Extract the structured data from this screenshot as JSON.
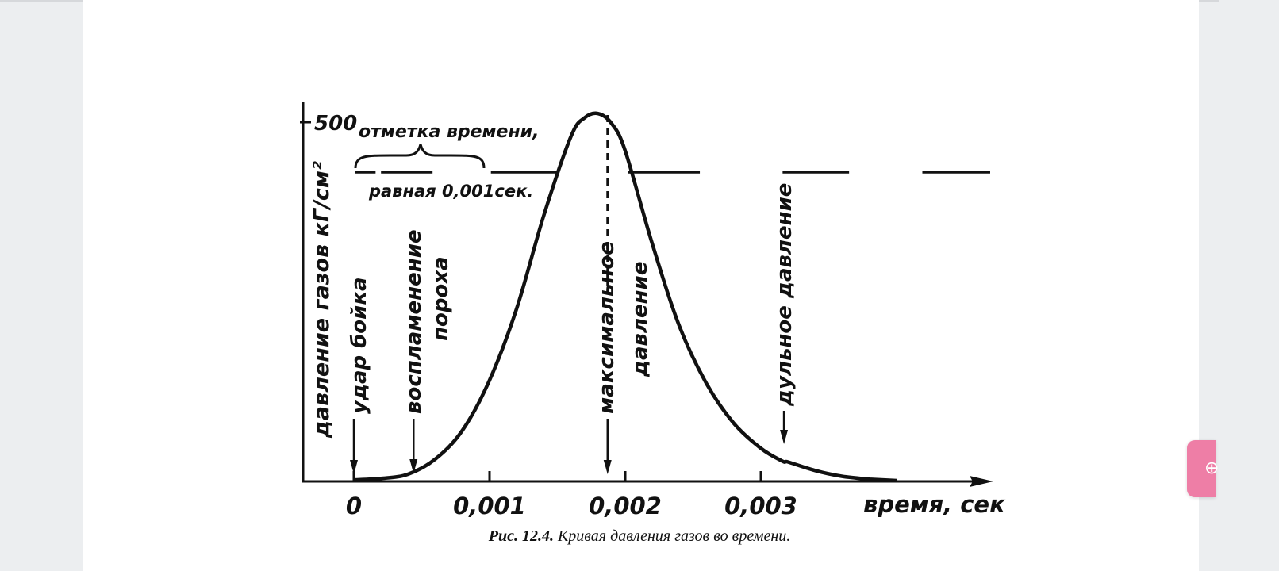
{
  "chart_data": {
    "type": "line",
    "title": "",
    "xlabel": "время, сек",
    "ylabel": "давление газов кГ/см²",
    "xlim": [
      -0.0004,
      0.0047
    ],
    "ylim": [
      0,
      520
    ],
    "x_ticks": [
      0,
      0.001,
      0.002,
      0.003
    ],
    "x_tick_labels": [
      "0",
      "0,001",
      "0,002",
      "0,003"
    ],
    "y_ticks": [
      500
    ],
    "y_tick_labels": [
      "500"
    ],
    "series": [
      {
        "name": "давление газов",
        "x": [
          0,
          0.0002,
          0.0004,
          0.0006,
          0.0008,
          0.001,
          0.0012,
          0.0014,
          0.0016,
          0.0017,
          0.0018,
          0.0019,
          0.002,
          0.0022,
          0.0024,
          0.0026,
          0.0028,
          0.003,
          0.00316,
          0.0032,
          0.0034,
          0.0036,
          0.0038
        ],
        "y": [
          1,
          3,
          9,
          30,
          70,
          140,
          240,
          370,
          480,
          506,
          512,
          498,
          460,
          330,
          215,
          135,
          80,
          45,
          27,
          26,
          14,
          6,
          2
        ]
      }
    ],
    "time_marker": {
      "label_top": "отметка времени,",
      "label_bottom": "равная 0,001сек.",
      "y_level": 430,
      "dash_x": [
        [
          1e-05,
          0.00016
        ],
        [
          0.0002,
          0.00058
        ],
        [
          0.00101,
          0.0015
        ],
        [
          0.00202,
          0.00255
        ],
        [
          0.00316,
          0.00365
        ],
        [
          0.00419,
          0.00469
        ]
      ]
    },
    "annotations": [
      {
        "text": "удар бойка",
        "x": 0
      },
      {
        "text": "воспламенение",
        "text2": "пороха",
        "x": 0.00044
      },
      {
        "text": "максимальное",
        "text2": "давление",
        "x": 0.00187
      },
      {
        "text": "дульное давление",
        "x": 0.00317
      }
    ]
  },
  "caption": {
    "label": "Рис. 12.4.",
    "text": " Кривая давления газов во времени."
  },
  "colors": {
    "ink": "#111111",
    "page_bg": "#eceef0",
    "paper_bg": "#ffffff",
    "fab": "#ee7ea6"
  },
  "fab_icon": "add-circle-icon"
}
